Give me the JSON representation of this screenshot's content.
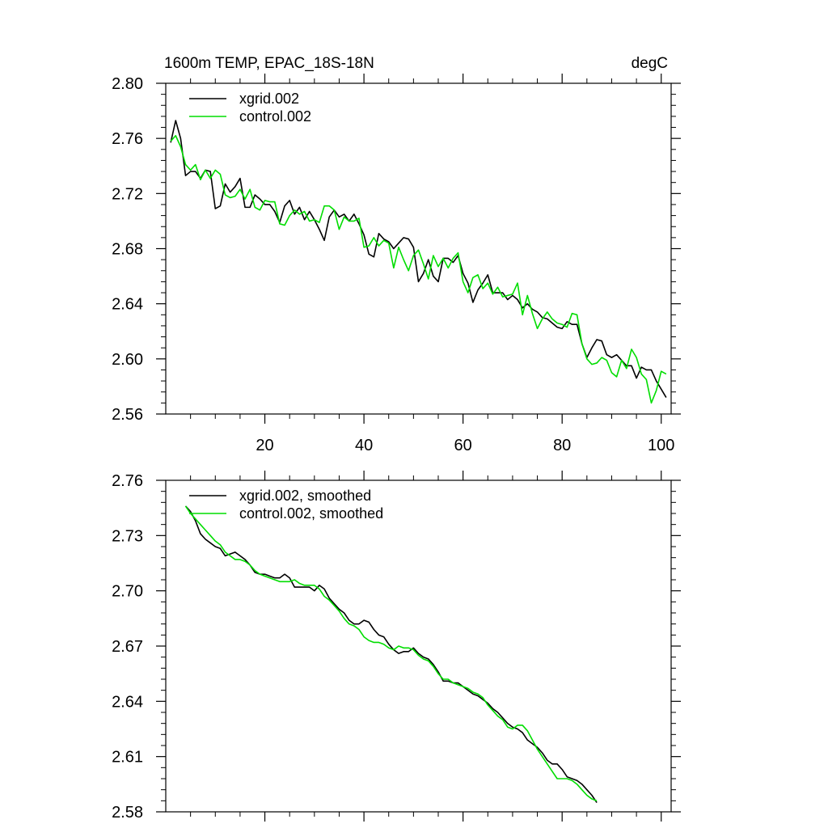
{
  "figure_header": {
    "left_text": "1600m TEMP, EPAC_18S-18N",
    "right_text": "degC"
  },
  "colors": {
    "xgrid": "#000000",
    "control": "#00dd00",
    "axes": "#000000",
    "background": "#ffffff"
  },
  "chart_data": [
    {
      "type": "line",
      "title": "",
      "xlabel": "",
      "ylabel": "",
      "xlim": [
        0,
        102
      ],
      "ylim": [
        2.56,
        2.8
      ],
      "x_ticks": [
        20,
        40,
        60,
        80,
        100
      ],
      "x_tick_labels": [
        "20",
        "40",
        "60",
        "80",
        "100"
      ],
      "y_ticks": [
        2.56,
        2.6,
        2.64,
        2.68,
        2.72,
        2.76,
        2.8
      ],
      "y_tick_labels": [
        "2.56",
        "2.60",
        "2.64",
        "2.68",
        "2.72",
        "2.76",
        "2.80"
      ],
      "legend_position": "top-left",
      "grid": false,
      "x_start": 1,
      "series": [
        {
          "name": "xgrid.002",
          "color": "#000000",
          "values": [
            2.757,
            2.773,
            2.76,
            2.733,
            2.736,
            2.736,
            2.731,
            2.737,
            2.736,
            2.709,
            2.711,
            2.727,
            2.721,
            2.725,
            2.731,
            2.71,
            2.71,
            2.719,
            2.716,
            2.712,
            2.712,
            2.707,
            2.699,
            2.711,
            2.715,
            2.705,
            2.71,
            2.701,
            2.707,
            2.701,
            2.694,
            2.686,
            2.703,
            2.708,
            2.703,
            2.705,
            2.7,
            2.705,
            2.698,
            2.69,
            2.676,
            2.674,
            2.691,
            2.687,
            2.685,
            2.68,
            2.684,
            2.688,
            2.687,
            2.681,
            2.656,
            2.662,
            2.672,
            2.66,
            2.656,
            2.673,
            2.673,
            2.67,
            2.675,
            2.662,
            2.655,
            2.641,
            2.65,
            2.655,
            2.661,
            2.648,
            2.648,
            2.648,
            2.643,
            2.646,
            2.643,
            2.637,
            2.64,
            2.636,
            2.634,
            2.63,
            2.629,
            2.626,
            2.623,
            2.622,
            2.627,
            2.625,
            2.625,
            2.611,
            2.601,
            2.608,
            2.614,
            2.613,
            2.603,
            2.601,
            2.603,
            2.599,
            2.595,
            2.595,
            2.586,
            2.594,
            2.592,
            2.592,
            2.584,
            2.578,
            2.572
          ]
        },
        {
          "name": "control.002",
          "color": "#00dd00",
          "values": [
            2.758,
            2.762,
            2.754,
            2.741,
            2.737,
            2.741,
            2.73,
            2.737,
            2.731,
            2.737,
            2.734,
            2.719,
            2.717,
            2.718,
            2.723,
            2.716,
            2.723,
            2.71,
            2.708,
            2.715,
            2.714,
            2.714,
            2.698,
            2.697,
            2.704,
            2.708,
            2.705,
            2.707,
            2.7,
            2.701,
            2.699,
            2.711,
            2.711,
            2.708,
            2.694,
            2.703,
            2.7,
            2.7,
            2.702,
            2.681,
            2.682,
            2.688,
            2.682,
            2.686,
            2.684,
            2.666,
            2.681,
            2.672,
            2.664,
            2.675,
            2.679,
            2.669,
            2.658,
            2.675,
            2.667,
            2.673,
            2.666,
            2.673,
            2.677,
            2.656,
            2.648,
            2.659,
            2.661,
            2.651,
            2.655,
            2.647,
            2.652,
            2.645,
            2.646,
            2.647,
            2.655,
            2.632,
            2.646,
            2.633,
            2.622,
            2.629,
            2.634,
            2.629,
            2.626,
            2.625,
            2.623,
            2.633,
            2.632,
            2.611,
            2.6,
            2.596,
            2.597,
            2.601,
            2.599,
            2.59,
            2.587,
            2.599,
            2.593,
            2.607,
            2.601,
            2.589,
            2.585,
            2.568,
            2.577,
            2.591,
            2.589
          ]
        }
      ]
    },
    {
      "type": "line",
      "title": "",
      "xlabel": "",
      "ylabel": "",
      "xlim": [
        0,
        102
      ],
      "ylim": [
        2.58,
        2.76
      ],
      "x_ticks": [
        20,
        40,
        60,
        80,
        100
      ],
      "x_tick_labels": [],
      "y_ticks": [
        2.58,
        2.61,
        2.64,
        2.67,
        2.7,
        2.73,
        2.76
      ],
      "y_tick_labels": [
        "2.58",
        "2.61",
        "2.64",
        "2.67",
        "2.70",
        "2.73",
        "2.76"
      ],
      "legend_position": "top-left",
      "grid": false,
      "x_start": 4,
      "series": [
        {
          "name": "xgrid.002, smoothed",
          "color": "#000000",
          "values": [
            2.746,
            2.743,
            2.738,
            2.731,
            2.728,
            2.726,
            2.724,
            2.723,
            2.719,
            2.72,
            2.721,
            2.719,
            2.717,
            2.714,
            2.71,
            2.709,
            2.709,
            2.708,
            2.707,
            2.707,
            2.709,
            2.707,
            2.702,
            2.702,
            2.702,
            2.702,
            2.7,
            2.703,
            2.701,
            2.696,
            2.693,
            2.69,
            2.688,
            2.684,
            2.682,
            2.682,
            2.684,
            2.683,
            2.679,
            2.676,
            2.675,
            2.671,
            2.668,
            2.666,
            2.667,
            2.667,
            2.669,
            2.666,
            2.664,
            2.663,
            2.66,
            2.656,
            2.651,
            2.651,
            2.65,
            2.65,
            2.648,
            2.646,
            2.644,
            2.643,
            2.641,
            2.639,
            2.636,
            2.634,
            2.631,
            2.628,
            2.626,
            2.625,
            2.623,
            2.619,
            2.617,
            2.615,
            2.612,
            2.608,
            2.606,
            2.606,
            2.603,
            2.599,
            2.598,
            2.597,
            2.595,
            2.592,
            2.589,
            2.585
          ]
        },
        {
          "name": "control.002, smoothed",
          "color": "#00dd00",
          "values": [
            2.746,
            2.742,
            2.739,
            2.736,
            2.733,
            2.73,
            2.727,
            2.725,
            2.721,
            2.719,
            2.717,
            2.717,
            2.716,
            2.714,
            2.711,
            2.709,
            2.708,
            2.707,
            2.706,
            2.705,
            2.705,
            2.705,
            2.706,
            2.704,
            2.703,
            2.703,
            2.703,
            2.701,
            2.697,
            2.695,
            2.692,
            2.689,
            2.685,
            2.682,
            2.681,
            2.679,
            2.675,
            2.673,
            2.672,
            2.672,
            2.671,
            2.669,
            2.668,
            2.67,
            2.669,
            2.669,
            2.668,
            2.665,
            2.663,
            2.662,
            2.659,
            2.655,
            2.652,
            2.652,
            2.65,
            2.649,
            2.648,
            2.647,
            2.645,
            2.644,
            2.642,
            2.638,
            2.635,
            2.632,
            2.63,
            2.626,
            2.625,
            2.627,
            2.627,
            2.624,
            2.619,
            2.614,
            2.61,
            2.606,
            2.602,
            2.598,
            2.598,
            2.598,
            2.597,
            2.595,
            2.592,
            2.589,
            2.587,
            2.586
          ]
        }
      ]
    }
  ]
}
